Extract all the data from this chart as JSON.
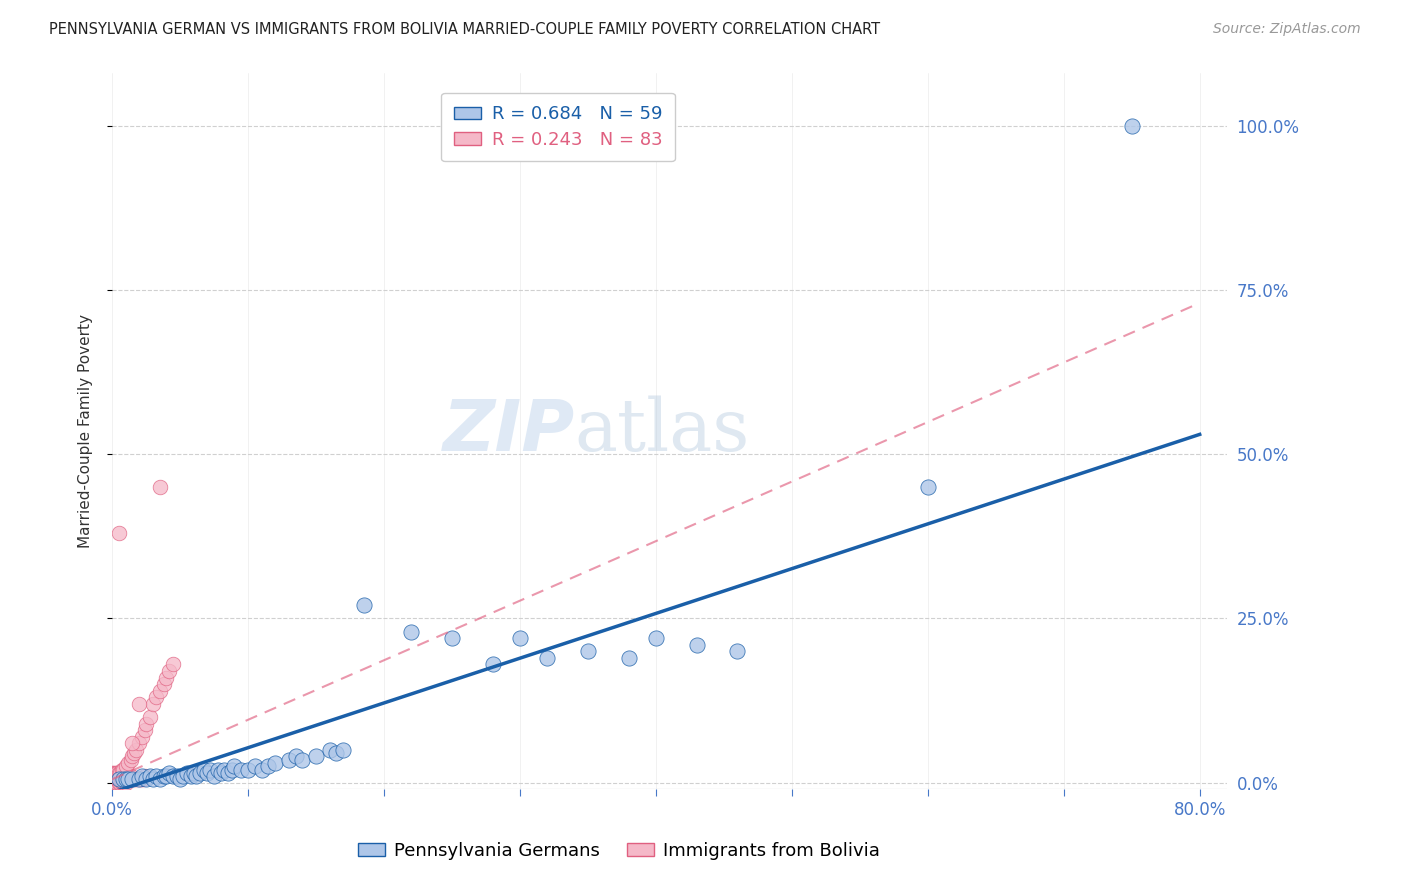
{
  "title": "PENNSYLVANIA GERMAN VS IMMIGRANTS FROM BOLIVIA MARRIED-COUPLE FAMILY POVERTY CORRELATION CHART",
  "source": "Source: ZipAtlas.com",
  "ylabel": "Married-Couple Family Poverty",
  "xlabel": "",
  "xlim": [
    0,
    0.82
  ],
  "ylim": [
    -0.01,
    1.08
  ],
  "yticks": [
    0,
    0.25,
    0.5,
    0.75,
    1.0
  ],
  "ytick_labels": [
    "0.0%",
    "25.0%",
    "50.0%",
    "75.0%",
    "100.0%"
  ],
  "xticks": [
    0,
    0.1,
    0.2,
    0.3,
    0.4,
    0.5,
    0.6,
    0.7,
    0.8
  ],
  "xtick_labels": [
    "0.0%",
    "",
    "",
    "",
    "",
    "",
    "",
    "",
    "80.0%"
  ],
  "blue_R": 0.684,
  "blue_N": 59,
  "pink_R": 0.243,
  "pink_N": 83,
  "blue_color": "#aec6e8",
  "blue_line_color": "#1a5fa8",
  "pink_color": "#f5b8c8",
  "pink_line_color": "#e06080",
  "watermark_zip": "ZIP",
  "watermark_atlas": "atlas",
  "background_color": "#ffffff",
  "grid_color": "#d0d0d0",
  "right_tick_color": "#4878c8",
  "blue_line": [
    [
      0.0,
      -0.015
    ],
    [
      0.8,
      0.53
    ]
  ],
  "pink_line": [
    [
      0.0,
      0.005
    ],
    [
      0.8,
      0.73
    ]
  ],
  "blue_scatter": [
    [
      0.005,
      0.005
    ],
    [
      0.008,
      0.005
    ],
    [
      0.01,
      0.005
    ],
    [
      0.012,
      0.005
    ],
    [
      0.015,
      0.005
    ],
    [
      0.02,
      0.005
    ],
    [
      0.022,
      0.01
    ],
    [
      0.025,
      0.005
    ],
    [
      0.028,
      0.01
    ],
    [
      0.03,
      0.005
    ],
    [
      0.032,
      0.01
    ],
    [
      0.035,
      0.005
    ],
    [
      0.038,
      0.01
    ],
    [
      0.04,
      0.01
    ],
    [
      0.042,
      0.015
    ],
    [
      0.045,
      0.01
    ],
    [
      0.048,
      0.01
    ],
    [
      0.05,
      0.005
    ],
    [
      0.052,
      0.01
    ],
    [
      0.055,
      0.015
    ],
    [
      0.058,
      0.01
    ],
    [
      0.06,
      0.015
    ],
    [
      0.062,
      0.01
    ],
    [
      0.065,
      0.015
    ],
    [
      0.068,
      0.02
    ],
    [
      0.07,
      0.015
    ],
    [
      0.072,
      0.02
    ],
    [
      0.075,
      0.01
    ],
    [
      0.078,
      0.02
    ],
    [
      0.08,
      0.015
    ],
    [
      0.082,
      0.02
    ],
    [
      0.085,
      0.015
    ],
    [
      0.088,
      0.02
    ],
    [
      0.09,
      0.025
    ],
    [
      0.095,
      0.02
    ],
    [
      0.1,
      0.02
    ],
    [
      0.105,
      0.025
    ],
    [
      0.11,
      0.02
    ],
    [
      0.115,
      0.025
    ],
    [
      0.12,
      0.03
    ],
    [
      0.13,
      0.035
    ],
    [
      0.135,
      0.04
    ],
    [
      0.14,
      0.035
    ],
    [
      0.15,
      0.04
    ],
    [
      0.16,
      0.05
    ],
    [
      0.165,
      0.045
    ],
    [
      0.17,
      0.05
    ],
    [
      0.185,
      0.27
    ],
    [
      0.22,
      0.23
    ],
    [
      0.25,
      0.22
    ],
    [
      0.28,
      0.18
    ],
    [
      0.3,
      0.22
    ],
    [
      0.32,
      0.19
    ],
    [
      0.35,
      0.2
    ],
    [
      0.38,
      0.19
    ],
    [
      0.4,
      0.22
    ],
    [
      0.43,
      0.21
    ],
    [
      0.46,
      0.2
    ],
    [
      0.6,
      0.45
    ],
    [
      0.75,
      1.0
    ]
  ],
  "pink_scatter": [
    [
      0.0,
      0.0
    ],
    [
      0.001,
      0.0
    ],
    [
      0.001,
      0.005
    ],
    [
      0.002,
      0.0
    ],
    [
      0.002,
      0.005
    ],
    [
      0.003,
      0.0
    ],
    [
      0.003,
      0.005
    ],
    [
      0.004,
      0.0
    ],
    [
      0.004,
      0.005
    ],
    [
      0.005,
      0.0
    ],
    [
      0.005,
      0.005
    ],
    [
      0.006,
      0.0
    ],
    [
      0.006,
      0.005
    ],
    [
      0.007,
      0.0
    ],
    [
      0.007,
      0.005
    ],
    [
      0.008,
      0.0
    ],
    [
      0.008,
      0.005
    ],
    [
      0.009,
      0.0
    ],
    [
      0.009,
      0.005
    ],
    [
      0.01,
      0.0
    ],
    [
      0.01,
      0.005
    ],
    [
      0.011,
      0.005
    ],
    [
      0.012,
      0.005
    ],
    [
      0.013,
      0.005
    ],
    [
      0.014,
      0.005
    ],
    [
      0.015,
      0.005
    ],
    [
      0.016,
      0.005
    ],
    [
      0.017,
      0.005
    ],
    [
      0.018,
      0.005
    ],
    [
      0.019,
      0.005
    ],
    [
      0.02,
      0.005
    ],
    [
      0.021,
      0.005
    ],
    [
      0.022,
      0.005
    ],
    [
      0.023,
      0.005
    ],
    [
      0.024,
      0.01
    ],
    [
      0.0,
      0.01
    ],
    [
      0.001,
      0.01
    ],
    [
      0.002,
      0.01
    ],
    [
      0.003,
      0.01
    ],
    [
      0.004,
      0.01
    ],
    [
      0.005,
      0.01
    ],
    [
      0.006,
      0.01
    ],
    [
      0.007,
      0.01
    ],
    [
      0.008,
      0.01
    ],
    [
      0.009,
      0.01
    ],
    [
      0.01,
      0.01
    ],
    [
      0.011,
      0.01
    ],
    [
      0.012,
      0.01
    ],
    [
      0.013,
      0.01
    ],
    [
      0.014,
      0.01
    ],
    [
      0.0,
      0.015
    ],
    [
      0.001,
      0.015
    ],
    [
      0.002,
      0.015
    ],
    [
      0.003,
      0.015
    ],
    [
      0.004,
      0.015
    ],
    [
      0.005,
      0.015
    ],
    [
      0.006,
      0.015
    ],
    [
      0.007,
      0.02
    ],
    [
      0.008,
      0.02
    ],
    [
      0.01,
      0.025
    ],
    [
      0.012,
      0.03
    ],
    [
      0.014,
      0.035
    ],
    [
      0.015,
      0.04
    ],
    [
      0.016,
      0.045
    ],
    [
      0.018,
      0.05
    ],
    [
      0.02,
      0.06
    ],
    [
      0.022,
      0.07
    ],
    [
      0.024,
      0.08
    ],
    [
      0.025,
      0.09
    ],
    [
      0.028,
      0.1
    ],
    [
      0.03,
      0.12
    ],
    [
      0.032,
      0.13
    ],
    [
      0.035,
      0.14
    ],
    [
      0.038,
      0.15
    ],
    [
      0.04,
      0.16
    ],
    [
      0.042,
      0.17
    ],
    [
      0.045,
      0.18
    ],
    [
      0.015,
      0.06
    ],
    [
      0.02,
      0.12
    ],
    [
      0.005,
      0.38
    ],
    [
      0.035,
      0.45
    ]
  ]
}
